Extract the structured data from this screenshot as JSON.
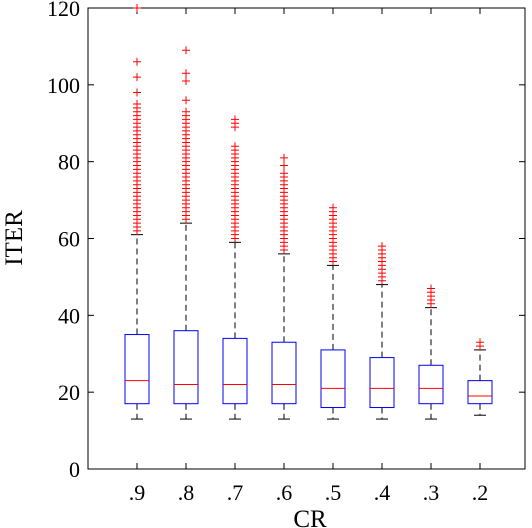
{
  "chart_data": {
    "type": "box",
    "xlabel": "CR",
    "ylabel": "ITER",
    "ylim": [
      0,
      120
    ],
    "yticks": [
      0,
      20,
      40,
      60,
      80,
      100,
      120
    ],
    "categories": [
      ".9",
      ".8",
      ".7",
      ".6",
      ".5",
      ".4",
      ".3",
      ".2"
    ],
    "boxes": [
      {
        "category": ".9",
        "whisker_low": 13,
        "q1": 17,
        "median": 23,
        "q3": 35,
        "whisker_high": 61,
        "outliers": [
          62,
          63,
          64,
          65,
          66,
          67,
          68,
          69,
          70,
          71,
          72,
          73,
          74,
          75,
          76,
          77,
          78,
          79,
          80,
          81,
          82,
          83,
          84,
          85,
          86,
          87,
          88,
          89,
          90,
          91,
          92,
          93,
          94,
          95,
          98,
          102,
          106,
          120
        ]
      },
      {
        "category": ".8",
        "whisker_low": 13,
        "q1": 17,
        "median": 22,
        "q3": 36,
        "whisker_high": 64,
        "outliers": [
          65,
          66,
          67,
          68,
          69,
          70,
          71,
          72,
          73,
          74,
          75,
          76,
          77,
          78,
          79,
          80,
          81,
          82,
          83,
          84,
          85,
          86,
          87,
          88,
          89,
          90,
          91,
          92,
          93,
          96,
          101,
          103,
          109
        ]
      },
      {
        "category": ".7",
        "whisker_low": 13,
        "q1": 17,
        "median": 22,
        "q3": 34,
        "whisker_high": 59,
        "outliers": [
          60,
          61,
          62,
          63,
          64,
          65,
          66,
          67,
          68,
          69,
          70,
          71,
          72,
          73,
          74,
          75,
          76,
          77,
          78,
          79,
          80,
          81,
          82,
          83,
          84,
          89,
          90,
          91
        ]
      },
      {
        "category": ".6",
        "whisker_low": 13,
        "q1": 17,
        "median": 22,
        "q3": 33,
        "whisker_high": 56,
        "outliers": [
          57,
          58,
          59,
          60,
          61,
          62,
          63,
          64,
          65,
          66,
          67,
          68,
          69,
          70,
          71,
          72,
          73,
          74,
          75,
          76,
          77,
          79,
          81
        ]
      },
      {
        "category": ".5",
        "whisker_low": 13,
        "q1": 16,
        "median": 21,
        "q3": 31,
        "whisker_high": 53,
        "outliers": [
          54,
          55,
          56,
          57,
          58,
          59,
          60,
          61,
          62,
          63,
          64,
          65,
          66,
          67,
          68
        ]
      },
      {
        "category": ".4",
        "whisker_low": 13,
        "q1": 16,
        "median": 21,
        "q3": 29,
        "whisker_high": 48,
        "outliers": [
          49,
          50,
          51,
          52,
          53,
          54,
          55,
          56,
          57,
          58
        ]
      },
      {
        "category": ".3",
        "whisker_low": 13,
        "q1": 17,
        "median": 21,
        "q3": 27,
        "whisker_high": 42,
        "outliers": [
          43,
          44,
          45,
          46,
          47
        ]
      },
      {
        "category": ".2",
        "whisker_low": 14,
        "q1": 17,
        "median": 19,
        "q3": 23,
        "whisker_high": 31,
        "outliers": [
          32,
          33
        ]
      }
    ],
    "colors": {
      "box": "#0000ff",
      "median": "#ff0000",
      "outlier": "#ff0000",
      "whisker": "#000000"
    },
    "grid": false,
    "legend": "none"
  }
}
